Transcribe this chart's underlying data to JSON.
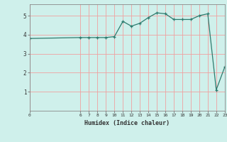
{
  "x_values": [
    0,
    6,
    7,
    8,
    9,
    10,
    11,
    12,
    13,
    14,
    15,
    16,
    17,
    18,
    19,
    20,
    21,
    22,
    23
  ],
  "y_values": [
    3.8,
    3.85,
    3.85,
    3.85,
    3.85,
    3.9,
    4.7,
    4.45,
    4.6,
    4.9,
    5.15,
    5.1,
    4.8,
    4.8,
    4.8,
    5.0,
    5.1,
    1.1,
    2.3
  ],
  "line_color": "#2d7b6e",
  "marker": "+",
  "bg_color": "#cff0eb",
  "grid_color_major": "#f0a0a0",
  "grid_color_minor": "#d0e8e8",
  "xlabel": "Humidex (Indice chaleur)",
  "xlim": [
    0,
    23
  ],
  "ylim": [
    0,
    5.6
  ],
  "yticks": [
    1,
    2,
    3,
    4,
    5
  ],
  "xticks": [
    0,
    6,
    7,
    8,
    9,
    10,
    11,
    12,
    13,
    14,
    15,
    16,
    17,
    18,
    19,
    20,
    21,
    22,
    23
  ],
  "font_color": "#333333"
}
